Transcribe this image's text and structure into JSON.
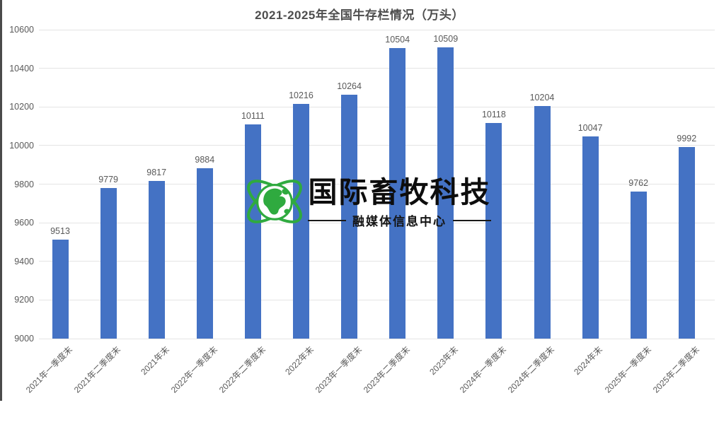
{
  "chart_data": {
    "type": "bar",
    "title": "2021-2025年全国牛存栏情况（万头）",
    "categories": [
      "2021年一季度末",
      "2021年二季度末",
      "2021年末",
      "2022年一季度末",
      "2022年二季度末",
      "2022年末",
      "2023年一季度末",
      "2023年二季度末",
      "2023年末",
      "2024年一季度末",
      "2024年二季度末",
      "2024年末",
      "2025年一季度末",
      "2025年二季度末"
    ],
    "values": [
      9513,
      9779,
      9817,
      9884,
      10111,
      10216,
      10264,
      10504,
      10509,
      10118,
      10204,
      10047,
      9762,
      9992
    ],
    "xlabel": "",
    "ylabel": "",
    "ylim": [
      9000,
      10600
    ],
    "yticks": [
      9000,
      9200,
      9400,
      9600,
      9800,
      10000,
      10200,
      10400,
      10600
    ],
    "grid": true,
    "legend": false,
    "data_labels": true,
    "bar_color": "#4472C4",
    "gridline_color": "#e4e4e4",
    "label_color": "#595959"
  },
  "watermark": {
    "brand": "国际畜牧科技",
    "subtitle": "融媒体信息中心",
    "globe_color": "#2faa3f",
    "text_color": "#0d0d0d"
  }
}
